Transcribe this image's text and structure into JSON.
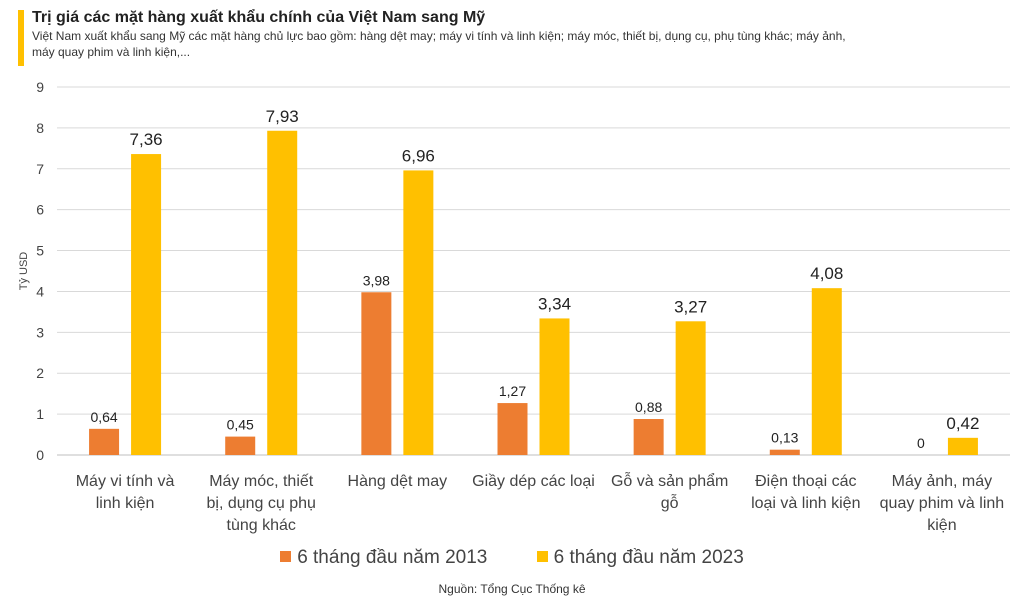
{
  "header": {
    "title": "Trị giá các mặt hàng xuất khẩu chính của Việt Nam sang Mỹ",
    "subtitle": "Việt Nam xuất khẩu sang Mỹ các mặt hàng chủ lực bao gồm: hàng dệt may; máy vi tính và linh kiện; máy móc, thiết bị, dụng cụ, phụ tùng khác; máy ảnh, máy quay phim và linh kiện,..."
  },
  "colors": {
    "accent": "#FFC000",
    "series_2013": "#ED7D31",
    "series_2023": "#FFC000"
  },
  "chart_data": {
    "type": "bar",
    "title": "Trị giá các mặt hàng xuất khẩu chính của Việt Nam sang Mỹ",
    "xlabel": "",
    "ylabel": "Tỷ USD",
    "ylim": [
      0,
      9
    ],
    "yticks": [
      "0",
      "1",
      "2",
      "3",
      "4",
      "5",
      "6",
      "7",
      "8",
      "9"
    ],
    "grid": true,
    "legend_position": "bottom",
    "categories": [
      [
        "Máy vi tính và",
        "linh kiện"
      ],
      [
        "Máy móc, thiết",
        "bị, dụng cụ phụ",
        "tùng khác"
      ],
      [
        "Hàng dệt may"
      ],
      [
        "Giầy dép các loại"
      ],
      [
        "Gỗ và sản phẩm",
        "gỗ"
      ],
      [
        "Điện thoại các",
        "loại và linh kiện"
      ],
      [
        "Máy ảnh, máy",
        "quay phim và linh",
        "kiện"
      ]
    ],
    "series": [
      {
        "name": "6 tháng đầu năm 2013",
        "values": [
          0.64,
          0.45,
          3.98,
          1.27,
          0.88,
          0.13,
          0
        ],
        "labels": [
          "0,64",
          "0,45",
          "3,98",
          "1,27",
          "0,88",
          "0,13",
          "0"
        ]
      },
      {
        "name": "6 tháng đầu năm 2023",
        "values": [
          7.36,
          7.93,
          6.96,
          3.34,
          3.27,
          4.08,
          0.42
        ],
        "labels": [
          "7,36",
          "7,93",
          "6,96",
          "3,34",
          "3,27",
          "4,08",
          "0,42"
        ]
      }
    ]
  },
  "legend": {
    "series_2013": "6 tháng đầu năm 2013",
    "series_2023": "6 tháng đầu năm 2023"
  },
  "source": "Nguồn: Tổng Cục Thống kê"
}
